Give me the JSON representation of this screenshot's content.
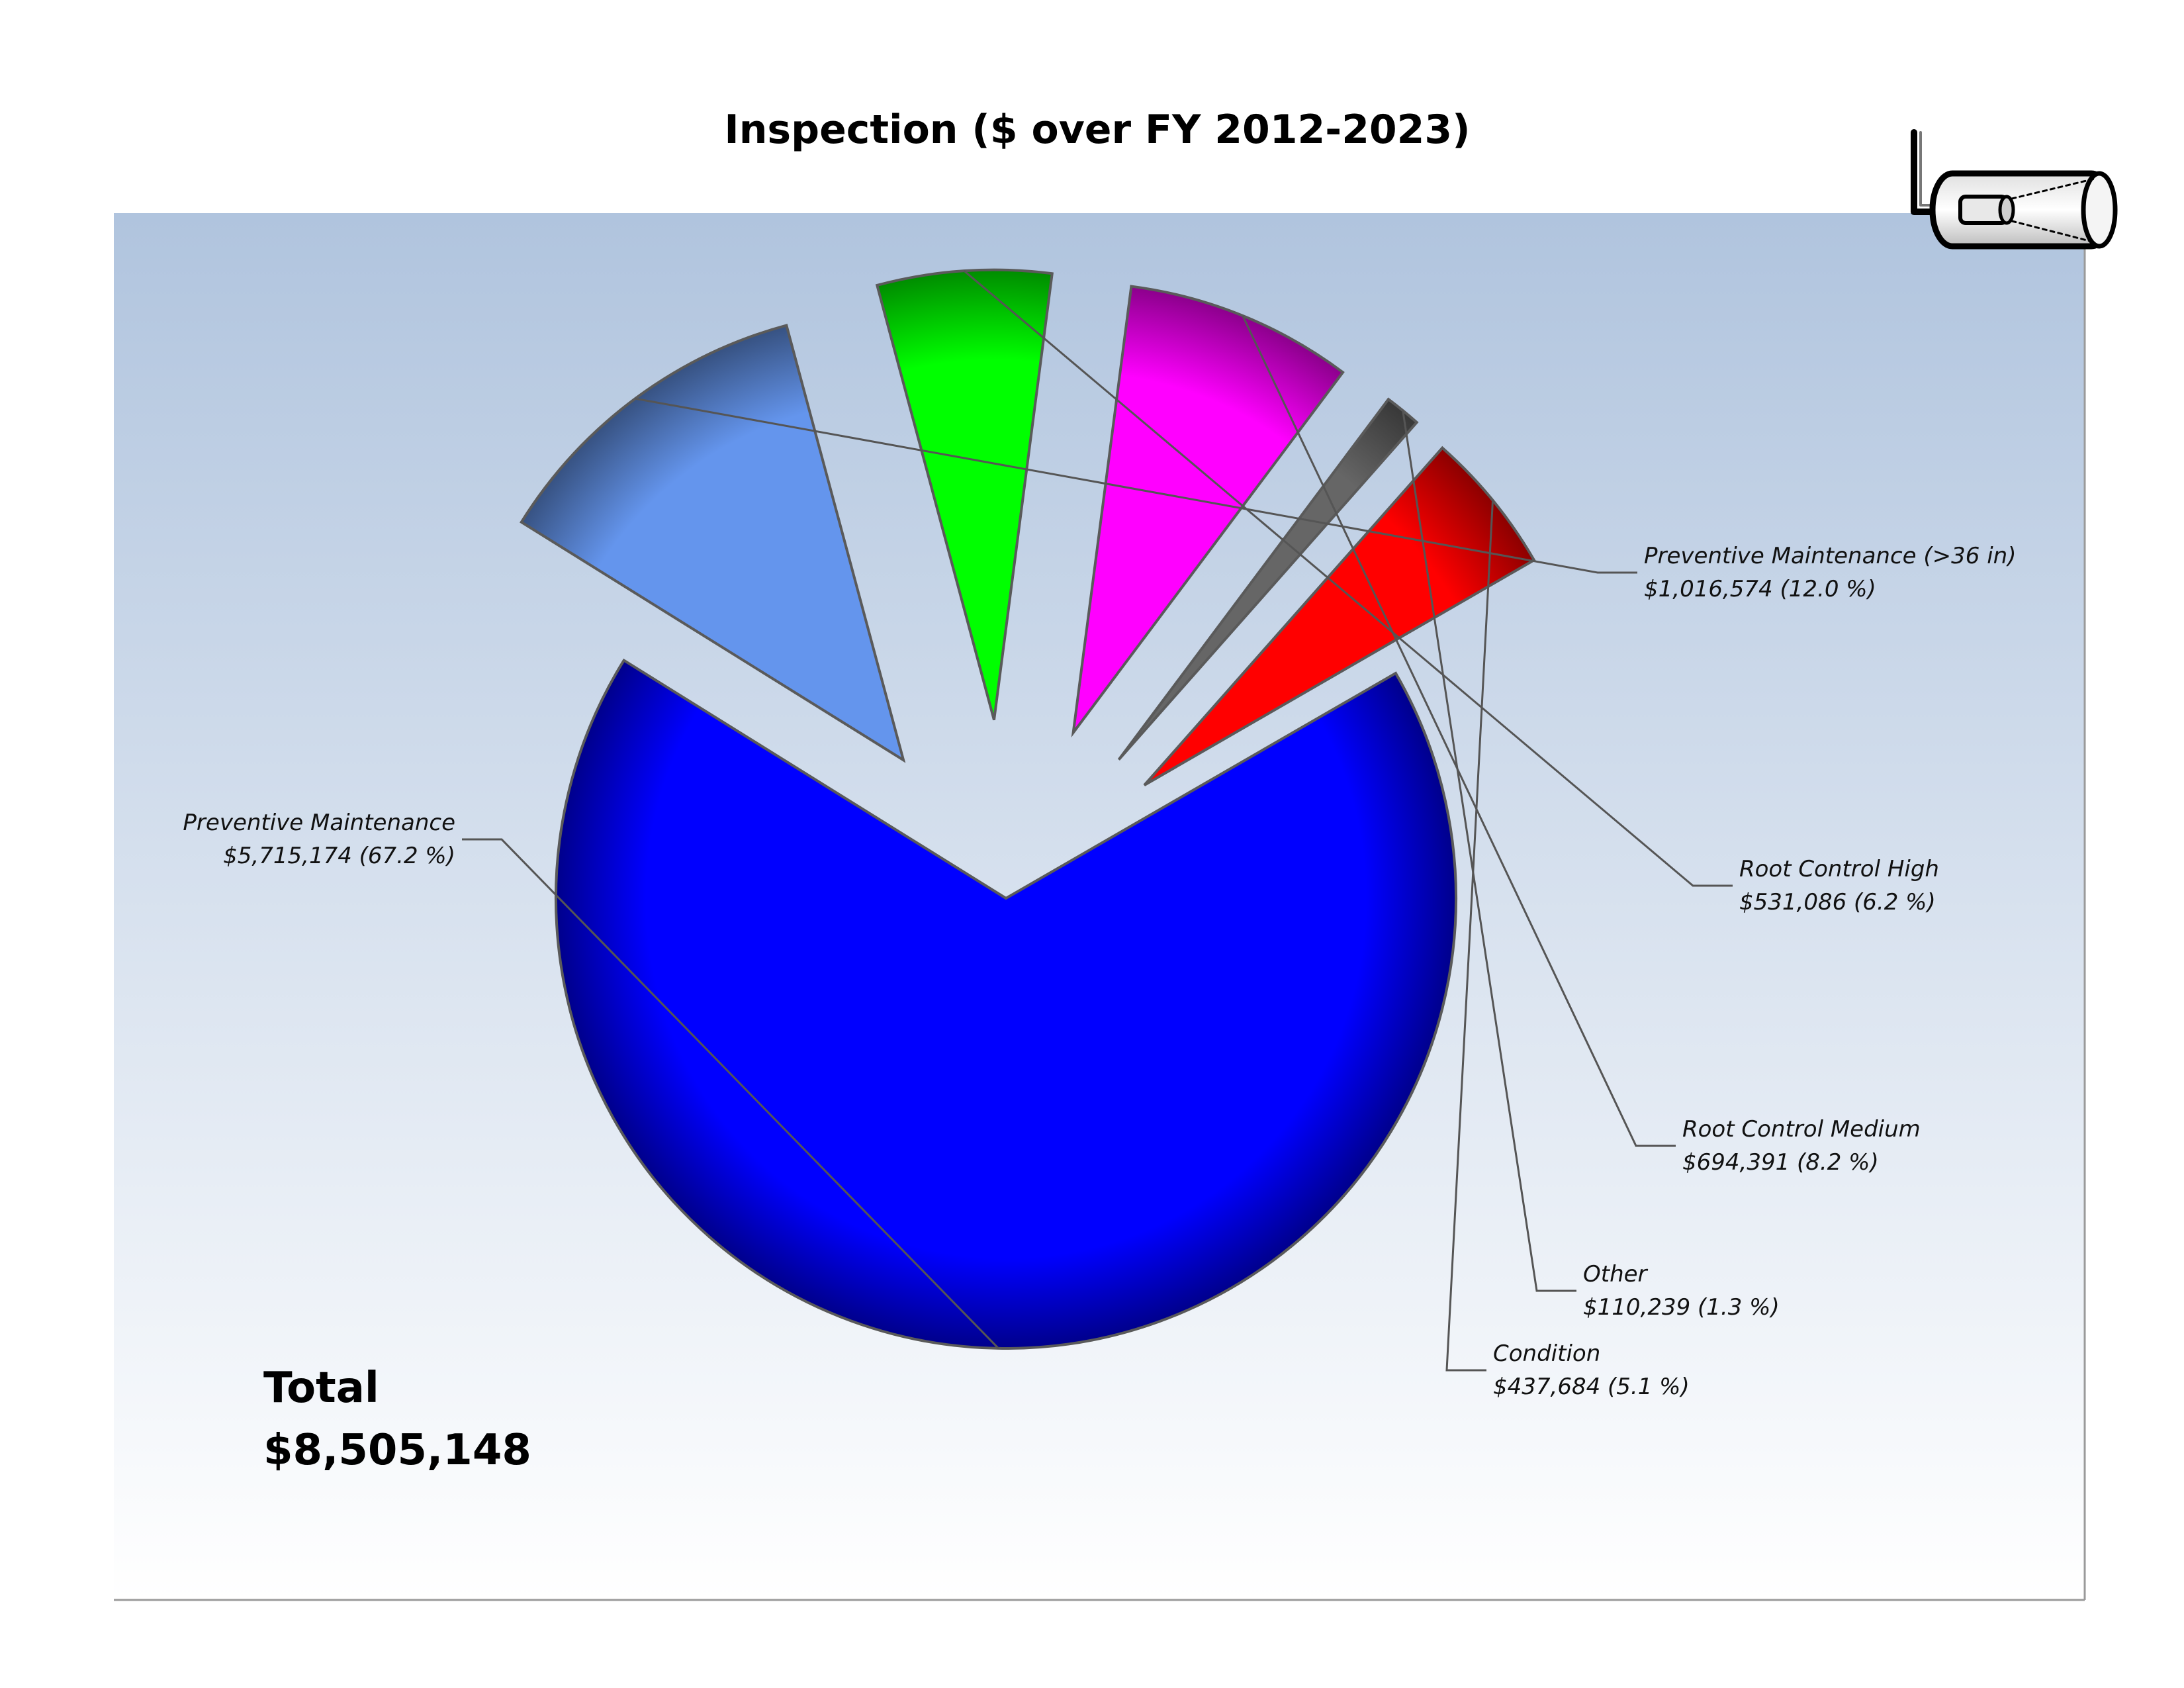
{
  "chart_data": {
    "type": "pie",
    "title": "Inspection ($ over FY 2012-2023)",
    "total_label": "Total",
    "total_value": "$8,505,148",
    "slices": [
      {
        "label": "Preventive Maintenance",
        "value": 5715174,
        "value_text": "$5,715,174 (67.2 %)",
        "percent": 67.2,
        "color": "#0000ff"
      },
      {
        "label": "Preventive Maintenance (>36 in)",
        "value": 1016574,
        "value_text": "$1,016,574 (12.0 %)",
        "percent": 12.0,
        "color": "#6495ed"
      },
      {
        "label": "Root Control High",
        "value": 531086,
        "value_text": "$531,086 (6.2 %)",
        "percent": 6.2,
        "color": "#00ff00"
      },
      {
        "label": "Root Control Medium",
        "value": 694391,
        "value_text": "$694,391 (8.2 %)",
        "percent": 8.2,
        "color": "#ff00ff"
      },
      {
        "label": "Other",
        "value": 110239,
        "value_text": "$110,239 (1.3 %)",
        "percent": 1.3,
        "color": "#666666"
      },
      {
        "label": "Condition",
        "value": 437684,
        "value_text": "$437,684 (5.1 %)",
        "percent": 5.1,
        "color": "#ff0000"
      }
    ],
    "background_gradient": [
      "#b0c4de",
      "#ffffff"
    ],
    "grid": false,
    "legend": "none"
  },
  "icons": {
    "corner_icon": "pipe-inspection-camera-icon"
  }
}
